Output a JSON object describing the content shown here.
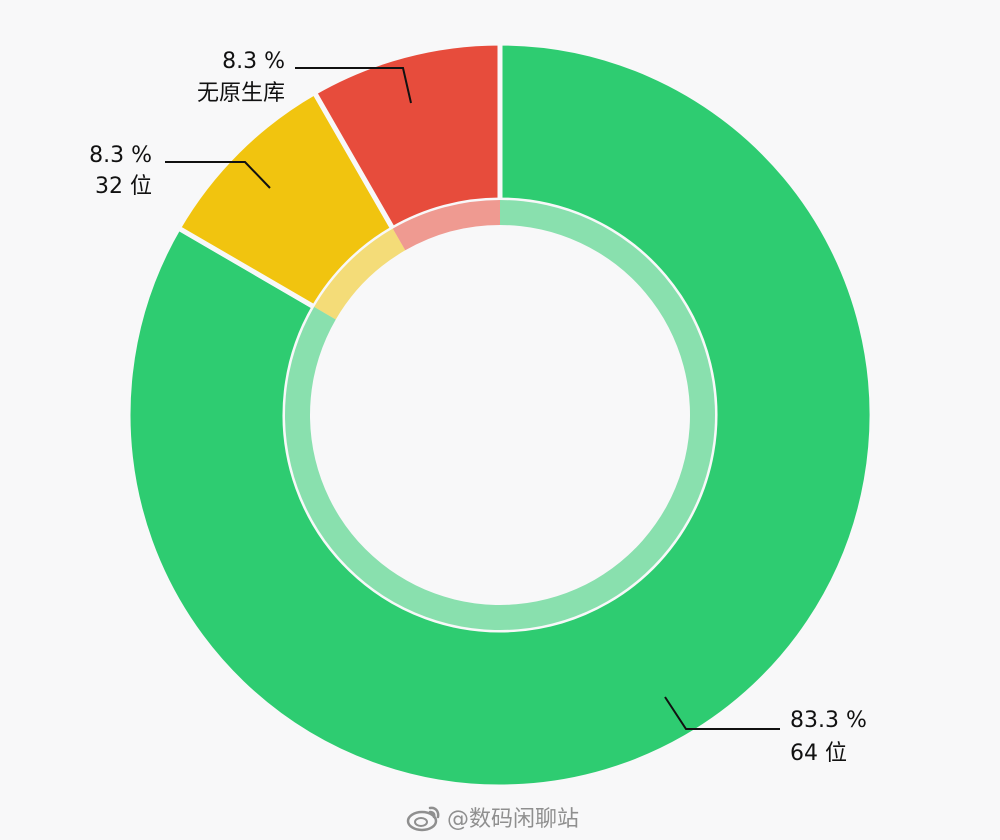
{
  "chart_data": {
    "type": "pie",
    "variant": "donut",
    "slices": [
      {
        "name": "64 位",
        "percent_label": "83.3 %",
        "value": 83.3,
        "color": "#2ecc71"
      },
      {
        "name": "32 位",
        "percent_label": "8.3 %",
        "value": 8.3,
        "color": "#f1c40f"
      },
      {
        "name": "无原生库",
        "percent_label": "8.3 %",
        "value": 8.3,
        "color": "#e74c3c"
      }
    ],
    "start_angle_note": "starts at 12 o'clock, clockwise",
    "legend": "none",
    "background": "#f8f8f9"
  },
  "watermark": {
    "icon": "weibo-icon",
    "text": "@数码闲聊站",
    "color": "#8f8f8f"
  }
}
